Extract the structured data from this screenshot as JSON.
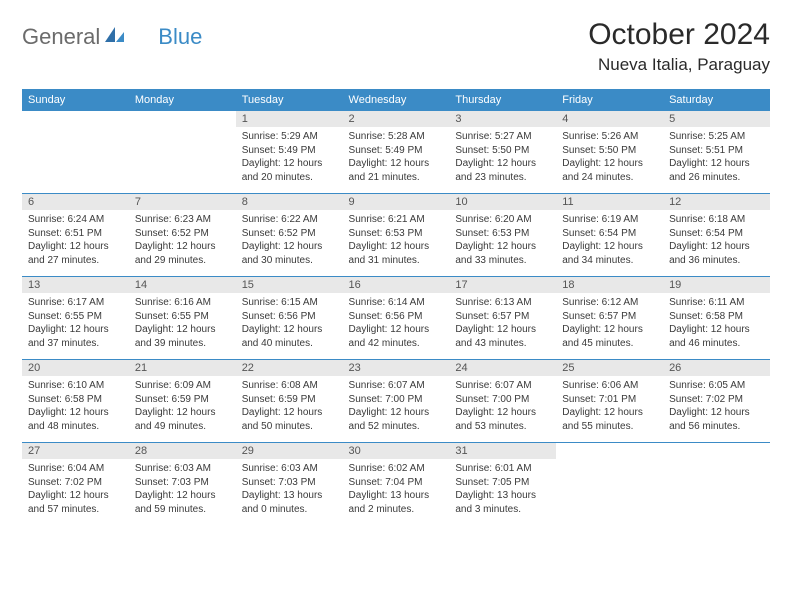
{
  "brand": {
    "part1": "General",
    "part2": "Blue"
  },
  "title": "October 2024",
  "location": "Nueva Italia, Paraguay",
  "colors": {
    "header_bg": "#3b8bc6",
    "header_text": "#ffffff",
    "daynum_bg": "#e8e8e8",
    "rule": "#3b8bc6",
    "body_text": "#3a3a3a",
    "page_bg": "#ffffff",
    "title_color": "#2a2a2a",
    "logo_gray": "#6b6b6b"
  },
  "daynames": [
    "Sunday",
    "Monday",
    "Tuesday",
    "Wednesday",
    "Thursday",
    "Friday",
    "Saturday"
  ],
  "layout": {
    "columns": 7,
    "rows": 5,
    "cell_fontsize_pt": 7.5,
    "header_fontsize_pt": 8.5,
    "title_fontsize_pt": 22
  },
  "weeks": [
    [
      {
        "empty": true
      },
      {
        "empty": true
      },
      {
        "num": "1",
        "sunrise": "Sunrise: 5:29 AM",
        "sunset": "Sunset: 5:49 PM",
        "day1": "Daylight: 12 hours",
        "day2": "and 20 minutes."
      },
      {
        "num": "2",
        "sunrise": "Sunrise: 5:28 AM",
        "sunset": "Sunset: 5:49 PM",
        "day1": "Daylight: 12 hours",
        "day2": "and 21 minutes."
      },
      {
        "num": "3",
        "sunrise": "Sunrise: 5:27 AM",
        "sunset": "Sunset: 5:50 PM",
        "day1": "Daylight: 12 hours",
        "day2": "and 23 minutes."
      },
      {
        "num": "4",
        "sunrise": "Sunrise: 5:26 AM",
        "sunset": "Sunset: 5:50 PM",
        "day1": "Daylight: 12 hours",
        "day2": "and 24 minutes."
      },
      {
        "num": "5",
        "sunrise": "Sunrise: 5:25 AM",
        "sunset": "Sunset: 5:51 PM",
        "day1": "Daylight: 12 hours",
        "day2": "and 26 minutes."
      }
    ],
    [
      {
        "num": "6",
        "sunrise": "Sunrise: 6:24 AM",
        "sunset": "Sunset: 6:51 PM",
        "day1": "Daylight: 12 hours",
        "day2": "and 27 minutes."
      },
      {
        "num": "7",
        "sunrise": "Sunrise: 6:23 AM",
        "sunset": "Sunset: 6:52 PM",
        "day1": "Daylight: 12 hours",
        "day2": "and 29 minutes."
      },
      {
        "num": "8",
        "sunrise": "Sunrise: 6:22 AM",
        "sunset": "Sunset: 6:52 PM",
        "day1": "Daylight: 12 hours",
        "day2": "and 30 minutes."
      },
      {
        "num": "9",
        "sunrise": "Sunrise: 6:21 AM",
        "sunset": "Sunset: 6:53 PM",
        "day1": "Daylight: 12 hours",
        "day2": "and 31 minutes."
      },
      {
        "num": "10",
        "sunrise": "Sunrise: 6:20 AM",
        "sunset": "Sunset: 6:53 PM",
        "day1": "Daylight: 12 hours",
        "day2": "and 33 minutes."
      },
      {
        "num": "11",
        "sunrise": "Sunrise: 6:19 AM",
        "sunset": "Sunset: 6:54 PM",
        "day1": "Daylight: 12 hours",
        "day2": "and 34 minutes."
      },
      {
        "num": "12",
        "sunrise": "Sunrise: 6:18 AM",
        "sunset": "Sunset: 6:54 PM",
        "day1": "Daylight: 12 hours",
        "day2": "and 36 minutes."
      }
    ],
    [
      {
        "num": "13",
        "sunrise": "Sunrise: 6:17 AM",
        "sunset": "Sunset: 6:55 PM",
        "day1": "Daylight: 12 hours",
        "day2": "and 37 minutes."
      },
      {
        "num": "14",
        "sunrise": "Sunrise: 6:16 AM",
        "sunset": "Sunset: 6:55 PM",
        "day1": "Daylight: 12 hours",
        "day2": "and 39 minutes."
      },
      {
        "num": "15",
        "sunrise": "Sunrise: 6:15 AM",
        "sunset": "Sunset: 6:56 PM",
        "day1": "Daylight: 12 hours",
        "day2": "and 40 minutes."
      },
      {
        "num": "16",
        "sunrise": "Sunrise: 6:14 AM",
        "sunset": "Sunset: 6:56 PM",
        "day1": "Daylight: 12 hours",
        "day2": "and 42 minutes."
      },
      {
        "num": "17",
        "sunrise": "Sunrise: 6:13 AM",
        "sunset": "Sunset: 6:57 PM",
        "day1": "Daylight: 12 hours",
        "day2": "and 43 minutes."
      },
      {
        "num": "18",
        "sunrise": "Sunrise: 6:12 AM",
        "sunset": "Sunset: 6:57 PM",
        "day1": "Daylight: 12 hours",
        "day2": "and 45 minutes."
      },
      {
        "num": "19",
        "sunrise": "Sunrise: 6:11 AM",
        "sunset": "Sunset: 6:58 PM",
        "day1": "Daylight: 12 hours",
        "day2": "and 46 minutes."
      }
    ],
    [
      {
        "num": "20",
        "sunrise": "Sunrise: 6:10 AM",
        "sunset": "Sunset: 6:58 PM",
        "day1": "Daylight: 12 hours",
        "day2": "and 48 minutes."
      },
      {
        "num": "21",
        "sunrise": "Sunrise: 6:09 AM",
        "sunset": "Sunset: 6:59 PM",
        "day1": "Daylight: 12 hours",
        "day2": "and 49 minutes."
      },
      {
        "num": "22",
        "sunrise": "Sunrise: 6:08 AM",
        "sunset": "Sunset: 6:59 PM",
        "day1": "Daylight: 12 hours",
        "day2": "and 50 minutes."
      },
      {
        "num": "23",
        "sunrise": "Sunrise: 6:07 AM",
        "sunset": "Sunset: 7:00 PM",
        "day1": "Daylight: 12 hours",
        "day2": "and 52 minutes."
      },
      {
        "num": "24",
        "sunrise": "Sunrise: 6:07 AM",
        "sunset": "Sunset: 7:00 PM",
        "day1": "Daylight: 12 hours",
        "day2": "and 53 minutes."
      },
      {
        "num": "25",
        "sunrise": "Sunrise: 6:06 AM",
        "sunset": "Sunset: 7:01 PM",
        "day1": "Daylight: 12 hours",
        "day2": "and 55 minutes."
      },
      {
        "num": "26",
        "sunrise": "Sunrise: 6:05 AM",
        "sunset": "Sunset: 7:02 PM",
        "day1": "Daylight: 12 hours",
        "day2": "and 56 minutes."
      }
    ],
    [
      {
        "num": "27",
        "sunrise": "Sunrise: 6:04 AM",
        "sunset": "Sunset: 7:02 PM",
        "day1": "Daylight: 12 hours",
        "day2": "and 57 minutes."
      },
      {
        "num": "28",
        "sunrise": "Sunrise: 6:03 AM",
        "sunset": "Sunset: 7:03 PM",
        "day1": "Daylight: 12 hours",
        "day2": "and 59 minutes."
      },
      {
        "num": "29",
        "sunrise": "Sunrise: 6:03 AM",
        "sunset": "Sunset: 7:03 PM",
        "day1": "Daylight: 13 hours",
        "day2": "and 0 minutes."
      },
      {
        "num": "30",
        "sunrise": "Sunrise: 6:02 AM",
        "sunset": "Sunset: 7:04 PM",
        "day1": "Daylight: 13 hours",
        "day2": "and 2 minutes."
      },
      {
        "num": "31",
        "sunrise": "Sunrise: 6:01 AM",
        "sunset": "Sunset: 7:05 PM",
        "day1": "Daylight: 13 hours",
        "day2": "and 3 minutes."
      },
      {
        "empty": true
      },
      {
        "empty": true
      }
    ]
  ]
}
